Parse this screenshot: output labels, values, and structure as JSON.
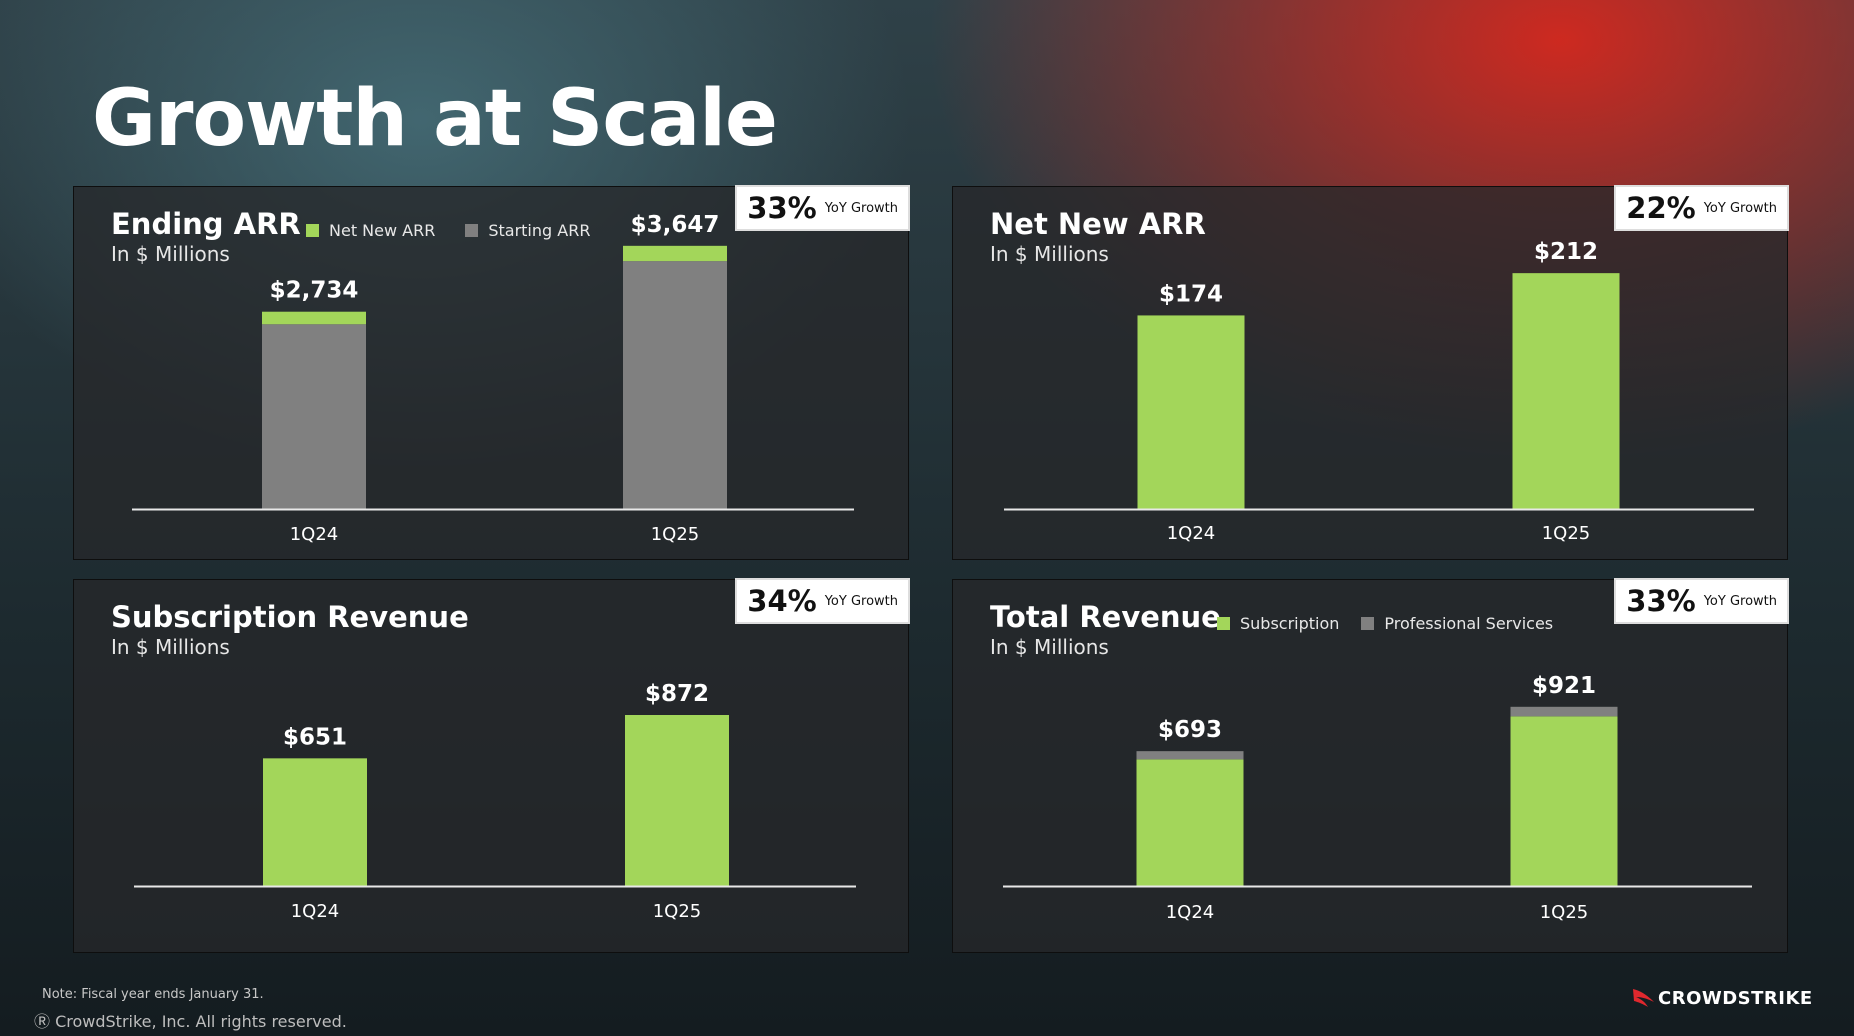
{
  "title": "Growth at Scale",
  "colors": {
    "green": "#a3d65a",
    "gray": "#808080",
    "axis": "#e8e8e8"
  },
  "yoy_label": "YoY Growth",
  "footer": {
    "note": "Note: Fiscal year ends January 31.",
    "copyright": "CrowdStrike, Inc. All rights reserved.",
    "logo_text": "CROWDSTRIKE"
  },
  "chart_data": [
    {
      "type": "bar",
      "stacked": true,
      "title": "Ending ARR",
      "subtitle": "In $ Millions",
      "yoy": "33%",
      "categories": [
        "1Q24",
        "1Q25"
      ],
      "series": [
        {
          "name": "Starting ARR",
          "color": "gray",
          "values": [
            2560,
            3435
          ]
        },
        {
          "name": "Net New ARR",
          "color": "green",
          "values": [
            174,
            212
          ]
        }
      ],
      "totals": [
        2734,
        3647
      ],
      "data_labels": [
        "$2,734",
        "$3,647"
      ],
      "legend": [
        "Net New ARR",
        "Starting ARR"
      ],
      "ylim": [
        0,
        3700
      ]
    },
    {
      "type": "bar",
      "title": "Net New ARR",
      "subtitle": "In $ Millions",
      "yoy": "22%",
      "categories": [
        "1Q24",
        "1Q25"
      ],
      "series": [
        {
          "color": "green",
          "values": [
            174,
            212
          ]
        }
      ],
      "totals": [
        174,
        212
      ],
      "data_labels": [
        "$174",
        "$212"
      ],
      "legend": [],
      "ylim": [
        0,
        240
      ]
    },
    {
      "type": "bar",
      "title": "Subscription Revenue",
      "subtitle": "In $ Millions",
      "yoy": "34%",
      "categories": [
        "1Q24",
        "1Q25"
      ],
      "series": [
        {
          "color": "green",
          "values": [
            651,
            872
          ]
        }
      ],
      "totals": [
        651,
        872
      ],
      "data_labels": [
        "$651",
        "$872"
      ],
      "legend": [],
      "ylim": [
        0,
        1280
      ]
    },
    {
      "type": "bar",
      "stacked": true,
      "title": "Total Revenue",
      "subtitle": "In $ Millions",
      "yoy": "33%",
      "categories": [
        "1Q24",
        "1Q25"
      ],
      "series": [
        {
          "name": "Subscription",
          "color": "green",
          "values": [
            651,
            872
          ]
        },
        {
          "name": "Professional Services",
          "color": "gray",
          "values": [
            42,
            49
          ]
        }
      ],
      "totals": [
        693,
        921
      ],
      "data_labels": [
        "$693",
        "$921"
      ],
      "legend": [
        "Subscription",
        "Professional Services"
      ],
      "ylim": [
        0,
        1290
      ]
    }
  ]
}
